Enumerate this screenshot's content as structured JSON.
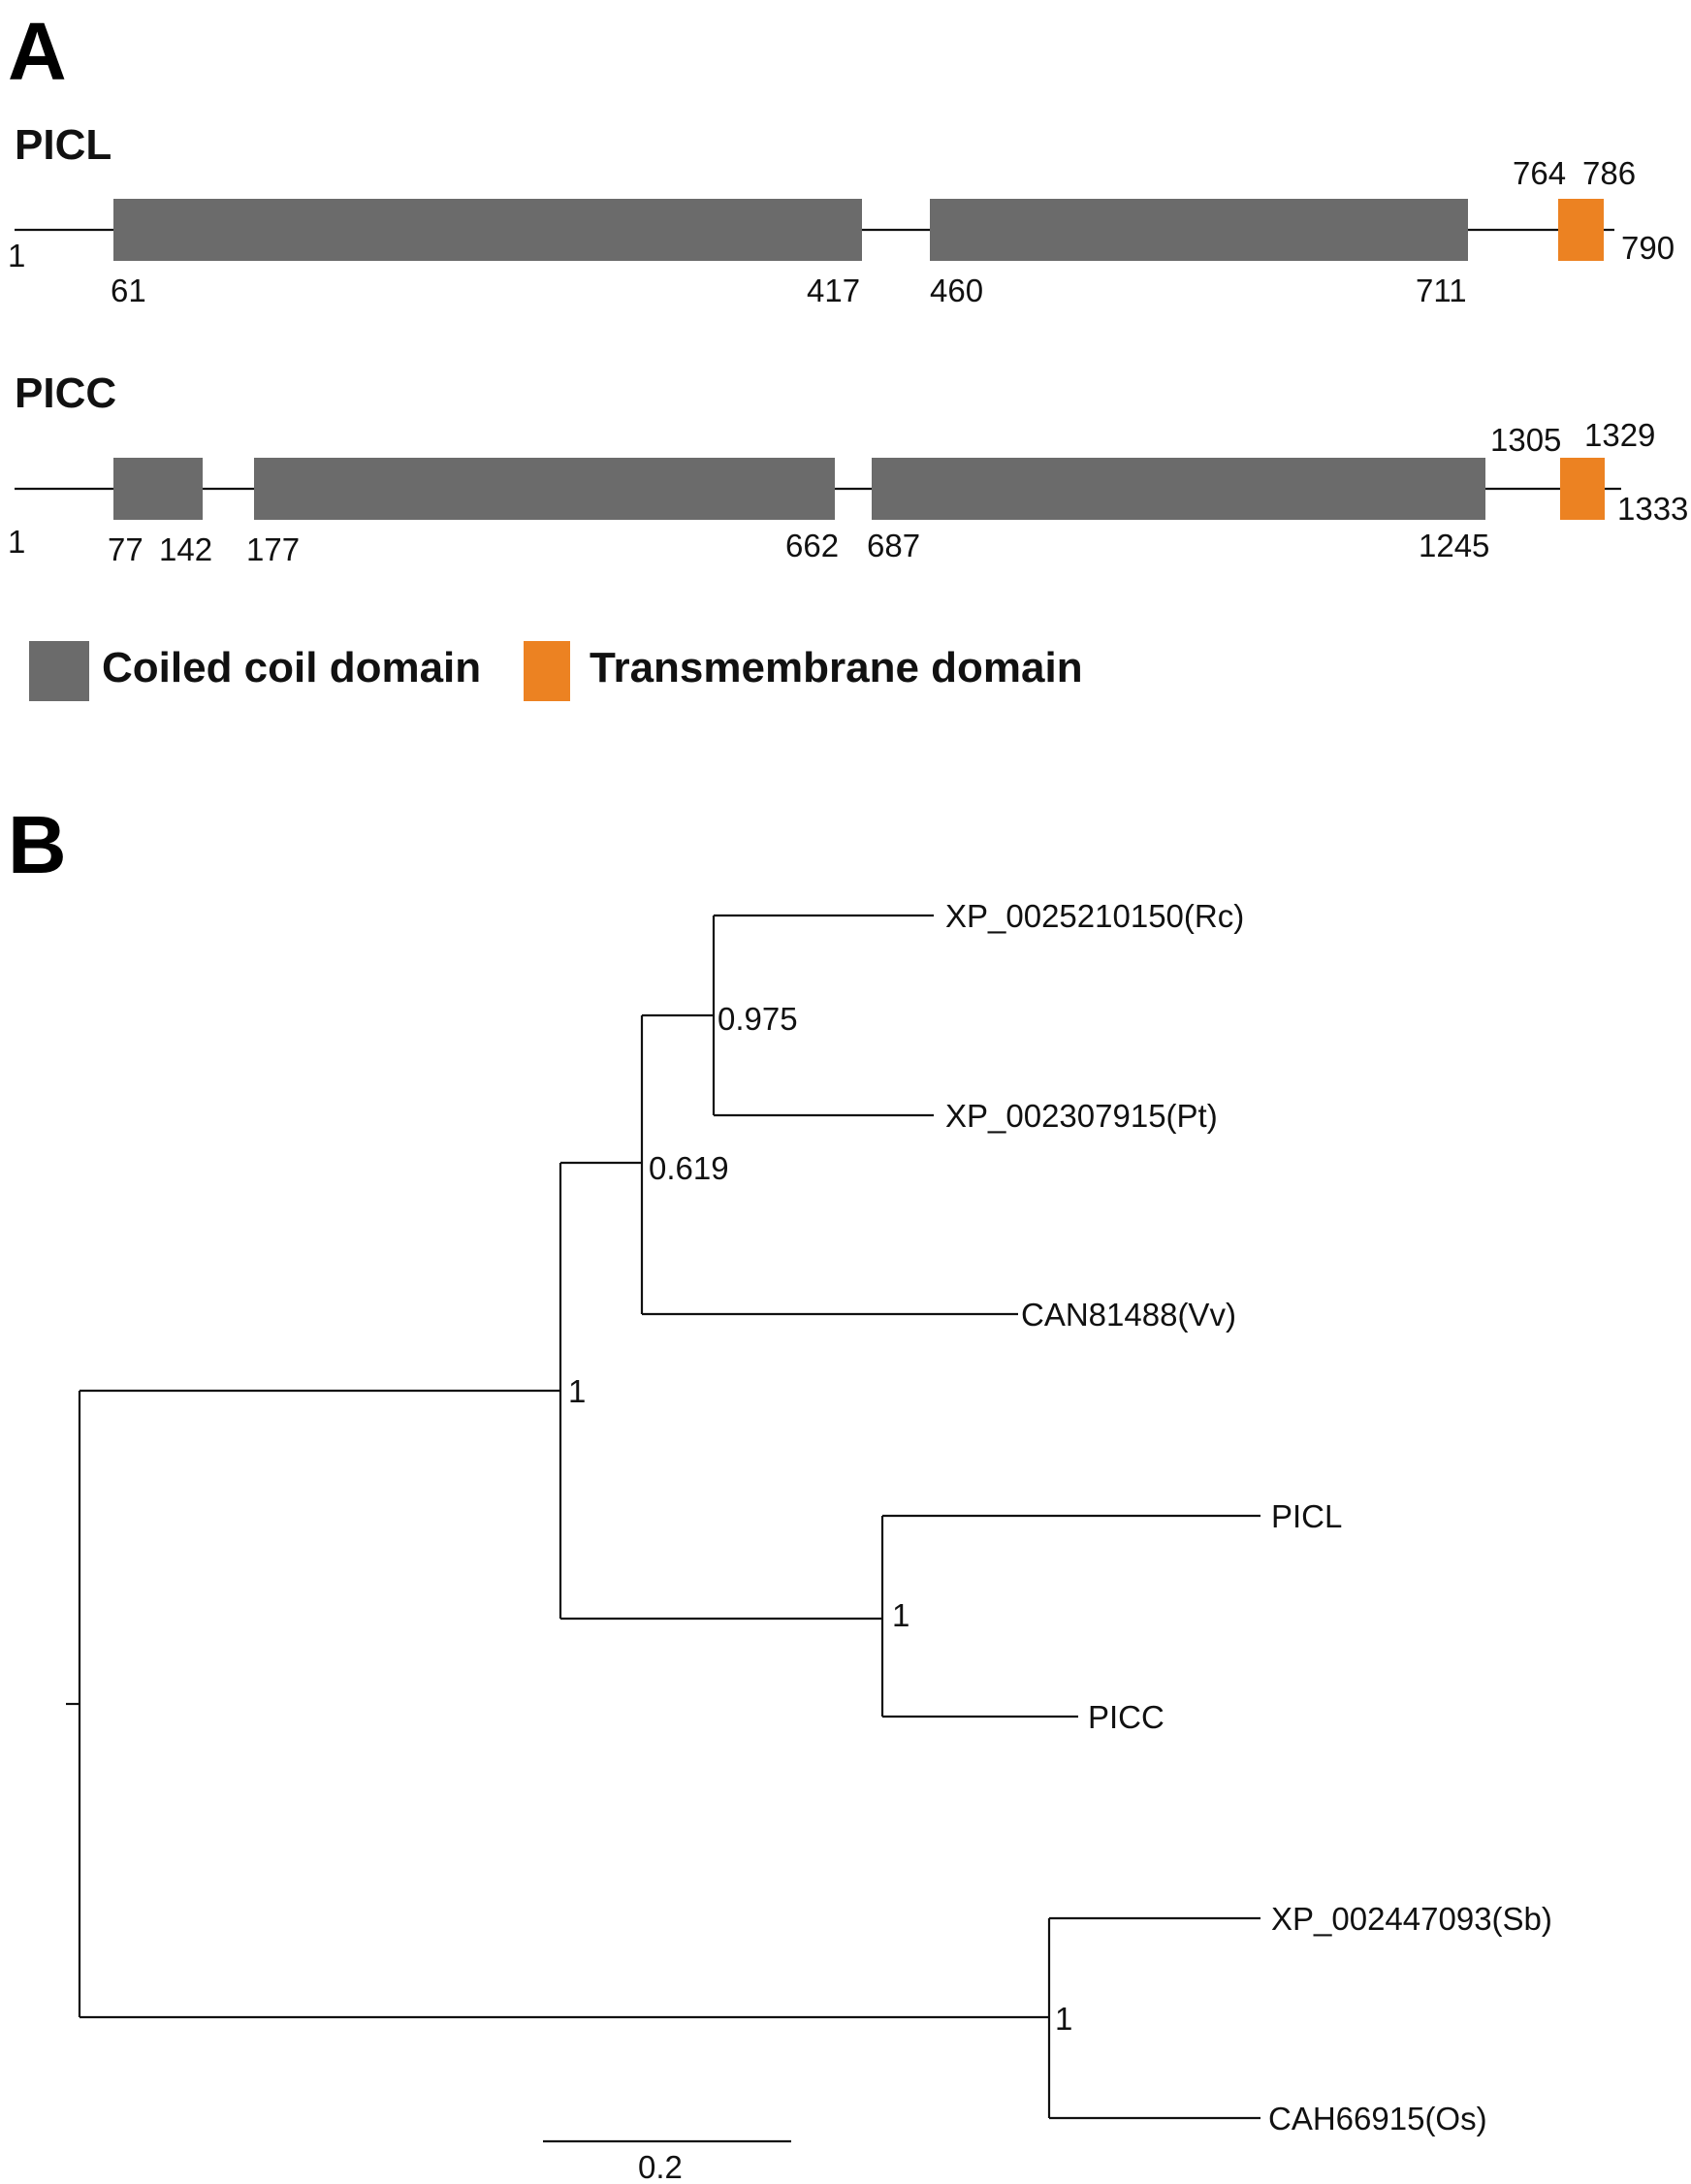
{
  "panel_a": {
    "letter": "A",
    "colors": {
      "coiled_coil": "#6b6b6b",
      "transmembrane": "#ec8222"
    },
    "proteins": [
      {
        "name": "PICL",
        "start": "1",
        "end": "790",
        "length": 790,
        "coiled_coil": [
          {
            "start": 61,
            "end": 417,
            "start_label": "61",
            "end_label": "417"
          },
          {
            "start": 460,
            "end": 711,
            "start_label": "460",
            "end_label": "711"
          }
        ],
        "transmembrane": {
          "start": 764,
          "end": 786,
          "start_label": "764",
          "end_label": "786"
        }
      },
      {
        "name": "PICC",
        "start": "1",
        "end": "1333",
        "length": 1333,
        "coiled_coil": [
          {
            "start": 77,
            "end": 142,
            "start_label": "77",
            "end_label": "142"
          },
          {
            "start": 177,
            "end": 662,
            "start_label": "177",
            "end_label": "662"
          },
          {
            "start": 687,
            "end": 1245,
            "start_label": "687",
            "end_label": "1245"
          }
        ],
        "transmembrane": {
          "start": 1305,
          "end": 1329,
          "start_label": "1305",
          "end_label": "1329"
        }
      }
    ],
    "legend": {
      "coiled_coil_label": "Coiled coil domain",
      "transmembrane_label": "Transmembrane domain"
    }
  },
  "panel_b": {
    "letter": "B",
    "leaves": [
      "XP_0025210150(Rc)",
      "XP_002307915(Pt)",
      "CAN81488(Vv)",
      "PICL",
      "PICC",
      "XP_002447093(Sb)",
      "CAH66915(Os)"
    ],
    "support_values": {
      "rc_pt": "0.975",
      "rc_pt_vv": "0.619",
      "eudicot_picl_picc": "1",
      "picl_picc": "1",
      "sb_os": "1"
    },
    "scale_bar": {
      "value": 0.2,
      "label": "0.2"
    }
  }
}
